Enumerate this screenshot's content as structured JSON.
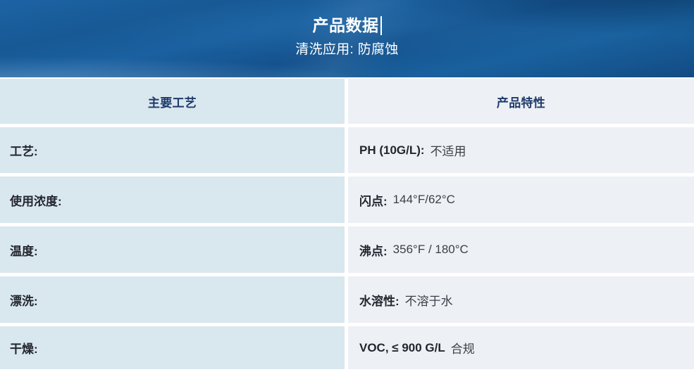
{
  "banner": {
    "title": "产品数据",
    "subtitle": "清洗应用: 防腐蚀"
  },
  "table": {
    "headers": [
      "主要工艺",
      "产品特性"
    ],
    "rows": [
      {
        "process": "工艺:",
        "property_label": "PH (10G/L):",
        "property_value": "不适用"
      },
      {
        "process": "使用浓度:",
        "property_label": "闪点:",
        "property_value": "144°F/62°C"
      },
      {
        "process": "温度:",
        "property_label": "沸点:",
        "property_value": "356°F / 180°C"
      },
      {
        "process": "漂洗:",
        "property_label": "水溶性:",
        "property_value": "不溶于水"
      },
      {
        "process": "干燥:",
        "property_label": "VOC, ≤ 900 G/L",
        "property_value": "合规"
      }
    ]
  },
  "colors": {
    "banner_blue": "#1a5a99",
    "left_cell_bg": "#d9e7ee",
    "right_cell_bg": "#edf0f4",
    "header_text": "#1e3a6b",
    "label_text": "#23262e",
    "value_text": "#3a3f48",
    "banner_text": "#ffffff"
  }
}
